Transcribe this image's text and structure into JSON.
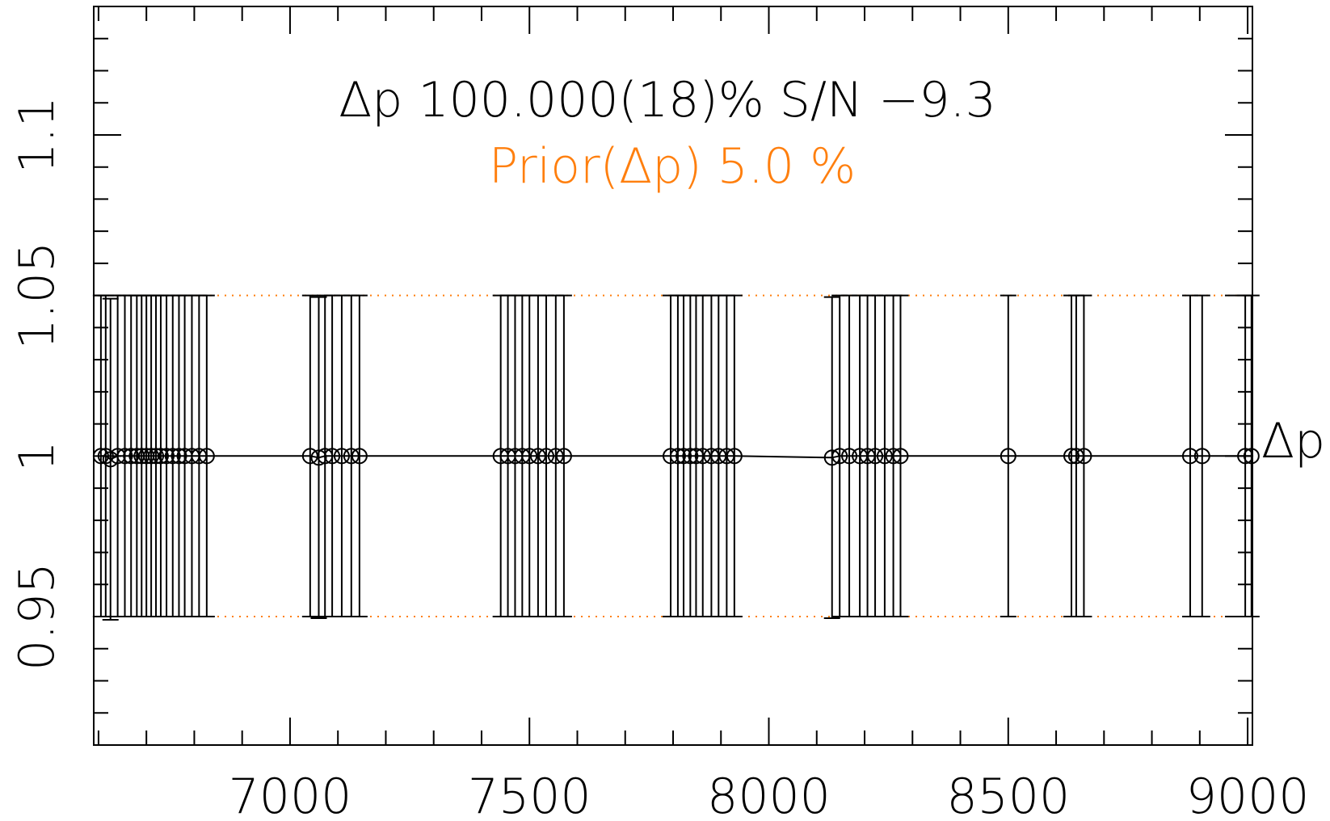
{
  "chart_data": {
    "type": "scatter",
    "title": "Δp 100.000(18)% S/N −9.3",
    "subtitle": "Prior(Δp) 5.0 %",
    "series_label": "Δp",
    "xlabel": "",
    "ylabel": "",
    "xlim": [
      6590,
      9010
    ],
    "ylim": [
      0.91,
      1.14
    ],
    "xticks": [
      7000,
      7500,
      8000,
      8500,
      9000
    ],
    "xtick_labels": [
      "7000",
      "7500",
      "8000",
      "8500",
      "9000"
    ],
    "yticks": [
      0.95,
      1.0,
      1.05,
      1.1
    ],
    "ytick_labels": [
      "0.95",
      "1",
      "1.05",
      "1.1"
    ],
    "prior_band": [
      0.95,
      1.05
    ],
    "grid": false,
    "colors": {
      "axes": "#000000",
      "data": "#000000",
      "prior": "#ff7f0e"
    },
    "series": [
      {
        "name": "Δp",
        "x": [
          6605,
          6615,
          6625,
          6640,
          6655,
          6668,
          6680,
          6690,
          6700,
          6710,
          6720,
          6730,
          6742,
          6755,
          6768,
          6780,
          6795,
          6810,
          6826,
          7042,
          7060,
          7073,
          7088,
          7108,
          7128,
          7145,
          7440,
          7455,
          7470,
          7485,
          7500,
          7518,
          7535,
          7555,
          7572,
          7795,
          7810,
          7822,
          7836,
          7848,
          7862,
          7880,
          7895,
          7912,
          7928,
          8132,
          8148,
          8168,
          8190,
          8206,
          8222,
          8242,
          8260,
          8275,
          8500,
          8632,
          8642,
          8658,
          8880,
          8905,
          8995,
          9008
        ],
        "y": [
          1.0,
          1.0,
          0.999,
          1.0,
          1.0,
          1.0,
          1.0,
          1.0,
          1.0,
          1.0,
          1.0,
          1.0,
          1.0,
          1.0,
          1.0,
          1.0,
          1.0,
          1.0,
          1.0,
          1.0,
          0.9995,
          1.0,
          1.0,
          1.0,
          1.0,
          1.0,
          1.0,
          1.0,
          1.0,
          1.0,
          1.0,
          1.0,
          1.0,
          1.0,
          1.0,
          1.0,
          1.0,
          1.0,
          1.0,
          1.0,
          1.0,
          1.0,
          1.0,
          1.0,
          1.0,
          0.9995,
          1.0,
          1.0,
          1.0,
          1.0,
          1.0,
          1.0,
          1.0,
          1.0,
          1.0,
          1.0,
          1.0,
          1.0,
          1.0,
          1.0,
          1.0,
          1.0
        ],
        "error": 0.05
      }
    ]
  }
}
